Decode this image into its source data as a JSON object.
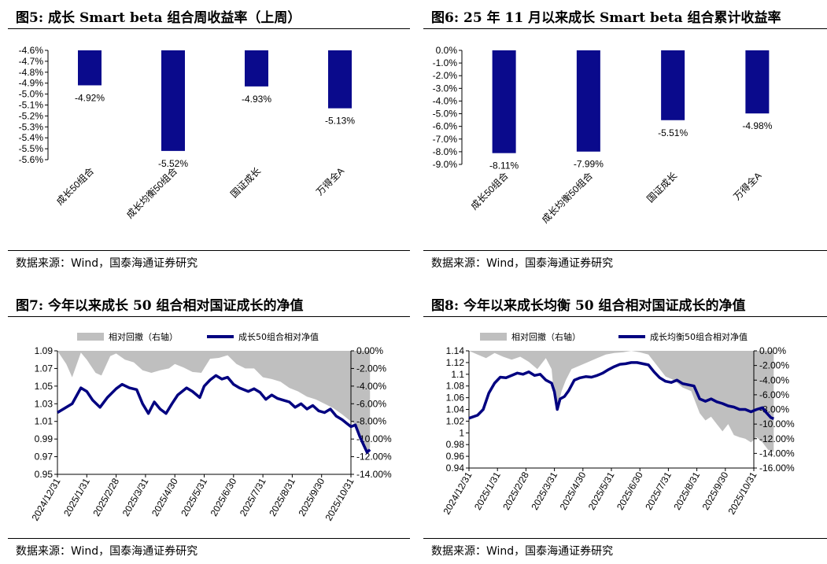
{
  "source_text": "数据来源：Wind，国泰海通证券研究",
  "chart_data": [
    {
      "id": "fig5",
      "type": "bar",
      "title": "图5:  成长 Smart beta 组合周收益率（上周）",
      "categories": [
        "成长50组合",
        "成长均衡50组合",
        "国证成长",
        "万得全A"
      ],
      "values": [
        -4.92,
        -5.52,
        -4.93,
        -5.13
      ],
      "value_labels": [
        "-4.92%",
        "-5.52%",
        "-4.93%",
        "-5.13%"
      ],
      "ylim": [
        -5.6,
        -4.6
      ],
      "yticks": [
        -4.6,
        -4.7,
        -4.8,
        -4.9,
        -5.0,
        -5.1,
        -5.2,
        -5.3,
        -5.4,
        -5.5,
        -5.6
      ],
      "ytick_labels": [
        "-4.6%",
        "-4.7%",
        "-4.8%",
        "-4.9%",
        "-5.0%",
        "-5.1%",
        "-5.2%",
        "-5.3%",
        "-5.4%",
        "-5.5%",
        "-5.6%"
      ],
      "bar_color": "#0A0A8C"
    },
    {
      "id": "fig6",
      "type": "bar",
      "title": "图6:  25 年 11 月以来成长 Smart beta 组合累计收益率",
      "categories": [
        "成长50组合",
        "成长均衡50组合",
        "国证成长",
        "万得全A"
      ],
      "values": [
        -8.11,
        -7.99,
        -5.51,
        -4.98
      ],
      "value_labels": [
        "-8.11%",
        "-7.99%",
        "-5.51%",
        "-4.98%"
      ],
      "ylim": [
        -9.0,
        0.0
      ],
      "yticks": [
        0,
        -1,
        -2,
        -3,
        -4,
        -5,
        -6,
        -7,
        -8,
        -9
      ],
      "ytick_labels": [
        "0.0%",
        "-1.0%",
        "-2.0%",
        "-3.0%",
        "-4.0%",
        "-5.0%",
        "-6.0%",
        "-7.0%",
        "-8.0%",
        "-9.0%"
      ],
      "bar_color": "#0A0A8C"
    },
    {
      "id": "fig7",
      "type": "line",
      "title": "图7:  今年以来成长 50 组合相对国证成长的净值",
      "legend": [
        "相对回撤（右轴）",
        "成长50组合相对净值"
      ],
      "x_labels": [
        "2024/12/31",
        "2025/1/31",
        "2025/2/28",
        "2025/3/31",
        "2025/4/30",
        "2025/5/31",
        "2025/6/30",
        "2025/7/31",
        "2025/8/31",
        "2025/9/30",
        "2025/10/31"
      ],
      "ylim_left": [
        0.95,
        1.09
      ],
      "yticks_left": [
        "1.09",
        "1.07",
        "1.05",
        "1.03",
        "1.01",
        "0.99",
        "0.97",
        "0.95"
      ],
      "ylim_right": [
        -14,
        0
      ],
      "yticks_right": [
        "0.00%",
        "-2.00%",
        "-4.00%",
        "-6.00%",
        "-8.00%",
        "-10.00%",
        "-12.00%",
        "-14.00%"
      ],
      "line_points": [
        [
          0,
          1.02
        ],
        [
          0.5,
          1.03
        ],
        [
          0.8,
          1.048
        ],
        [
          1.0,
          1.044
        ],
        [
          1.2,
          1.034
        ],
        [
          1.45,
          1.026
        ],
        [
          1.7,
          1.037
        ],
        [
          2.0,
          1.047
        ],
        [
          2.2,
          1.052
        ],
        [
          2.45,
          1.048
        ],
        [
          2.7,
          1.046
        ],
        [
          2.9,
          1.03
        ],
        [
          3.1,
          1.019
        ],
        [
          3.3,
          1.032
        ],
        [
          3.5,
          1.024
        ],
        [
          3.7,
          1.019
        ],
        [
          3.9,
          1.03
        ],
        [
          4.1,
          1.04
        ],
        [
          4.4,
          1.048
        ],
        [
          4.6,
          1.044
        ],
        [
          4.85,
          1.037
        ],
        [
          5.0,
          1.05
        ],
        [
          5.2,
          1.057
        ],
        [
          5.4,
          1.062
        ],
        [
          5.6,
          1.058
        ],
        [
          5.8,
          1.06
        ],
        [
          6.0,
          1.052
        ],
        [
          6.2,
          1.048
        ],
        [
          6.5,
          1.044
        ],
        [
          6.7,
          1.047
        ],
        [
          6.9,
          1.043
        ],
        [
          7.1,
          1.035
        ],
        [
          7.3,
          1.04
        ],
        [
          7.5,
          1.036
        ],
        [
          7.7,
          1.034
        ],
        [
          7.9,
          1.032
        ],
        [
          8.1,
          1.026
        ],
        [
          8.3,
          1.03
        ],
        [
          8.5,
          1.024
        ],
        [
          8.7,
          1.028
        ],
        [
          8.9,
          1.022
        ],
        [
          9.1,
          1.02
        ],
        [
          9.3,
          1.024
        ],
        [
          9.5,
          1.016
        ],
        [
          9.7,
          1.012
        ],
        [
          9.85,
          1.008
        ],
        [
          10.0,
          1.004
        ],
        [
          10.15,
          1.006
        ],
        [
          10.3,
          0.993
        ],
        [
          10.45,
          0.982
        ],
        [
          10.55,
          0.975
        ],
        [
          10.65,
          0.978
        ]
      ],
      "area_points": [
        [
          0,
          0
        ],
        [
          0.3,
          -1.5
        ],
        [
          0.5,
          -3.0
        ],
        [
          0.8,
          -0.2
        ],
        [
          1.0,
          -1.0
        ],
        [
          1.3,
          -2.5
        ],
        [
          1.5,
          -2.8
        ],
        [
          1.8,
          -0.6
        ],
        [
          2.0,
          -0.3
        ],
        [
          2.3,
          -1.0
        ],
        [
          2.6,
          -1.3
        ],
        [
          2.9,
          -2.2
        ],
        [
          3.2,
          -2.5
        ],
        [
          3.5,
          -2.2
        ],
        [
          3.8,
          -2.0
        ],
        [
          4.0,
          -1.5
        ],
        [
          4.3,
          -1.9
        ],
        [
          4.6,
          -2.4
        ],
        [
          4.9,
          -2.5
        ],
        [
          5.2,
          -0.9
        ],
        [
          5.5,
          -0.8
        ],
        [
          5.8,
          -0.5
        ],
        [
          6.1,
          -1.5
        ],
        [
          6.4,
          -2.0
        ],
        [
          6.7,
          -2.0
        ],
        [
          7.0,
          -3.0
        ],
        [
          7.3,
          -3.2
        ],
        [
          7.6,
          -3.5
        ],
        [
          7.9,
          -4.2
        ],
        [
          8.2,
          -4.6
        ],
        [
          8.5,
          -5.2
        ],
        [
          8.8,
          -5.5
        ],
        [
          9.1,
          -6.0
        ],
        [
          9.4,
          -6.5
        ],
        [
          9.7,
          -7.2
        ],
        [
          10.0,
          -8.0
        ],
        [
          10.2,
          -8.5
        ],
        [
          10.4,
          -10.0
        ],
        [
          10.55,
          -11.3
        ],
        [
          10.65,
          -11.0
        ]
      ],
      "line_color": "#000080",
      "area_color": "#BFBFBF"
    },
    {
      "id": "fig8",
      "type": "line",
      "title": "图8:  今年以来成长均衡 50 组合相对国证成长的净值",
      "legend": [
        "相对回撤（右轴）",
        "成长均衡50组合相对净值"
      ],
      "x_labels": [
        "2024/12/31",
        "2025/1/31",
        "2025/2/28",
        "2025/3/31",
        "2025/4/30",
        "2025/5/31",
        "2025/6/30",
        "2025/7/31",
        "2025/8/31",
        "2025/9/30",
        "2025/10/31"
      ],
      "ylim_left": [
        0.94,
        1.14
      ],
      "yticks_left": [
        "1.14",
        "1.12",
        "1.1",
        "1.08",
        "1.06",
        "1.04",
        "1.02",
        "1",
        "0.98",
        "0.96",
        "0.94"
      ],
      "ylim_right": [
        -16,
        0
      ],
      "yticks_right": [
        "0.00%",
        "-2.00%",
        "-4.00%",
        "-6.00%",
        "-8.00%",
        "-10.00%",
        "-12.00%",
        "-14.00%",
        "-16.00%"
      ],
      "line_points": [
        [
          0,
          1.025
        ],
        [
          0.3,
          1.03
        ],
        [
          0.5,
          1.04
        ],
        [
          0.7,
          1.068
        ],
        [
          0.9,
          1.085
        ],
        [
          1.1,
          1.095
        ],
        [
          1.3,
          1.094
        ],
        [
          1.5,
          1.098
        ],
        [
          1.7,
          1.102
        ],
        [
          1.9,
          1.1
        ],
        [
          2.1,
          1.104
        ],
        [
          2.3,
          1.098
        ],
        [
          2.5,
          1.1
        ],
        [
          2.7,
          1.09
        ],
        [
          2.9,
          1.085
        ],
        [
          3.0,
          1.07
        ],
        [
          3.1,
          1.04
        ],
        [
          3.2,
          1.058
        ],
        [
          3.35,
          1.062
        ],
        [
          3.5,
          1.072
        ],
        [
          3.7,
          1.09
        ],
        [
          3.9,
          1.094
        ],
        [
          4.1,
          1.096
        ],
        [
          4.3,
          1.095
        ],
        [
          4.5,
          1.098
        ],
        [
          4.7,
          1.102
        ],
        [
          4.9,
          1.108
        ],
        [
          5.1,
          1.113
        ],
        [
          5.3,
          1.117
        ],
        [
          5.5,
          1.118
        ],
        [
          5.7,
          1.12
        ],
        [
          5.9,
          1.12
        ],
        [
          6.1,
          1.118
        ],
        [
          6.3,
          1.116
        ],
        [
          6.5,
          1.104
        ],
        [
          6.7,
          1.094
        ],
        [
          6.9,
          1.088
        ],
        [
          7.1,
          1.086
        ],
        [
          7.3,
          1.09
        ],
        [
          7.5,
          1.084
        ],
        [
          7.7,
          1.082
        ],
        [
          7.9,
          1.08
        ],
        [
          8.1,
          1.058
        ],
        [
          8.3,
          1.054
        ],
        [
          8.5,
          1.058
        ],
        [
          8.7,
          1.053
        ],
        [
          8.9,
          1.05
        ],
        [
          9.1,
          1.046
        ],
        [
          9.3,
          1.044
        ],
        [
          9.5,
          1.04
        ],
        [
          9.7,
          1.04
        ],
        [
          9.9,
          1.036
        ],
        [
          10.1,
          1.04
        ],
        [
          10.3,
          1.043
        ],
        [
          10.45,
          1.034
        ],
        [
          10.6,
          1.026
        ],
        [
          10.7,
          1.024
        ]
      ],
      "area_points": [
        [
          0,
          0
        ],
        [
          0.3,
          -0.5
        ],
        [
          0.6,
          -1.0
        ],
        [
          0.9,
          -0.3
        ],
        [
          1.2,
          -0.8
        ],
        [
          1.5,
          -1.2
        ],
        [
          1.8,
          -0.8
        ],
        [
          2.1,
          -1.5
        ],
        [
          2.4,
          -2.5
        ],
        [
          2.7,
          -1.0
        ],
        [
          2.9,
          -2.5
        ],
        [
          3.0,
          -6.5
        ],
        [
          3.1,
          -8.0
        ],
        [
          3.25,
          -5.5
        ],
        [
          3.4,
          -4.0
        ],
        [
          3.6,
          -2.5
        ],
        [
          3.9,
          -2.0
        ],
        [
          4.2,
          -1.5
        ],
        [
          4.5,
          -1.0
        ],
        [
          4.8,
          -0.5
        ],
        [
          5.1,
          -0.3
        ],
        [
          5.4,
          -0.2
        ],
        [
          5.7,
          0
        ],
        [
          6.0,
          -0.2
        ],
        [
          6.3,
          -0.5
        ],
        [
          6.6,
          -2.0
        ],
        [
          6.9,
          -3.5
        ],
        [
          7.2,
          -4.0
        ],
        [
          7.5,
          -5.0
        ],
        [
          7.8,
          -5.5
        ],
        [
          8.1,
          -8.5
        ],
        [
          8.3,
          -9.5
        ],
        [
          8.5,
          -9.0
        ],
        [
          8.7,
          -10.0
        ],
        [
          8.9,
          -11.0
        ],
        [
          9.1,
          -10.0
        ],
        [
          9.3,
          -11.5
        ],
        [
          9.5,
          -11.8
        ],
        [
          9.7,
          -12.0
        ],
        [
          9.9,
          -12.5
        ],
        [
          10.1,
          -11.8
        ],
        [
          10.3,
          -12.5
        ],
        [
          10.5,
          -13.5
        ],
        [
          10.7,
          -13.8
        ]
      ],
      "line_color": "#000080",
      "area_color": "#BFBFBF"
    }
  ]
}
